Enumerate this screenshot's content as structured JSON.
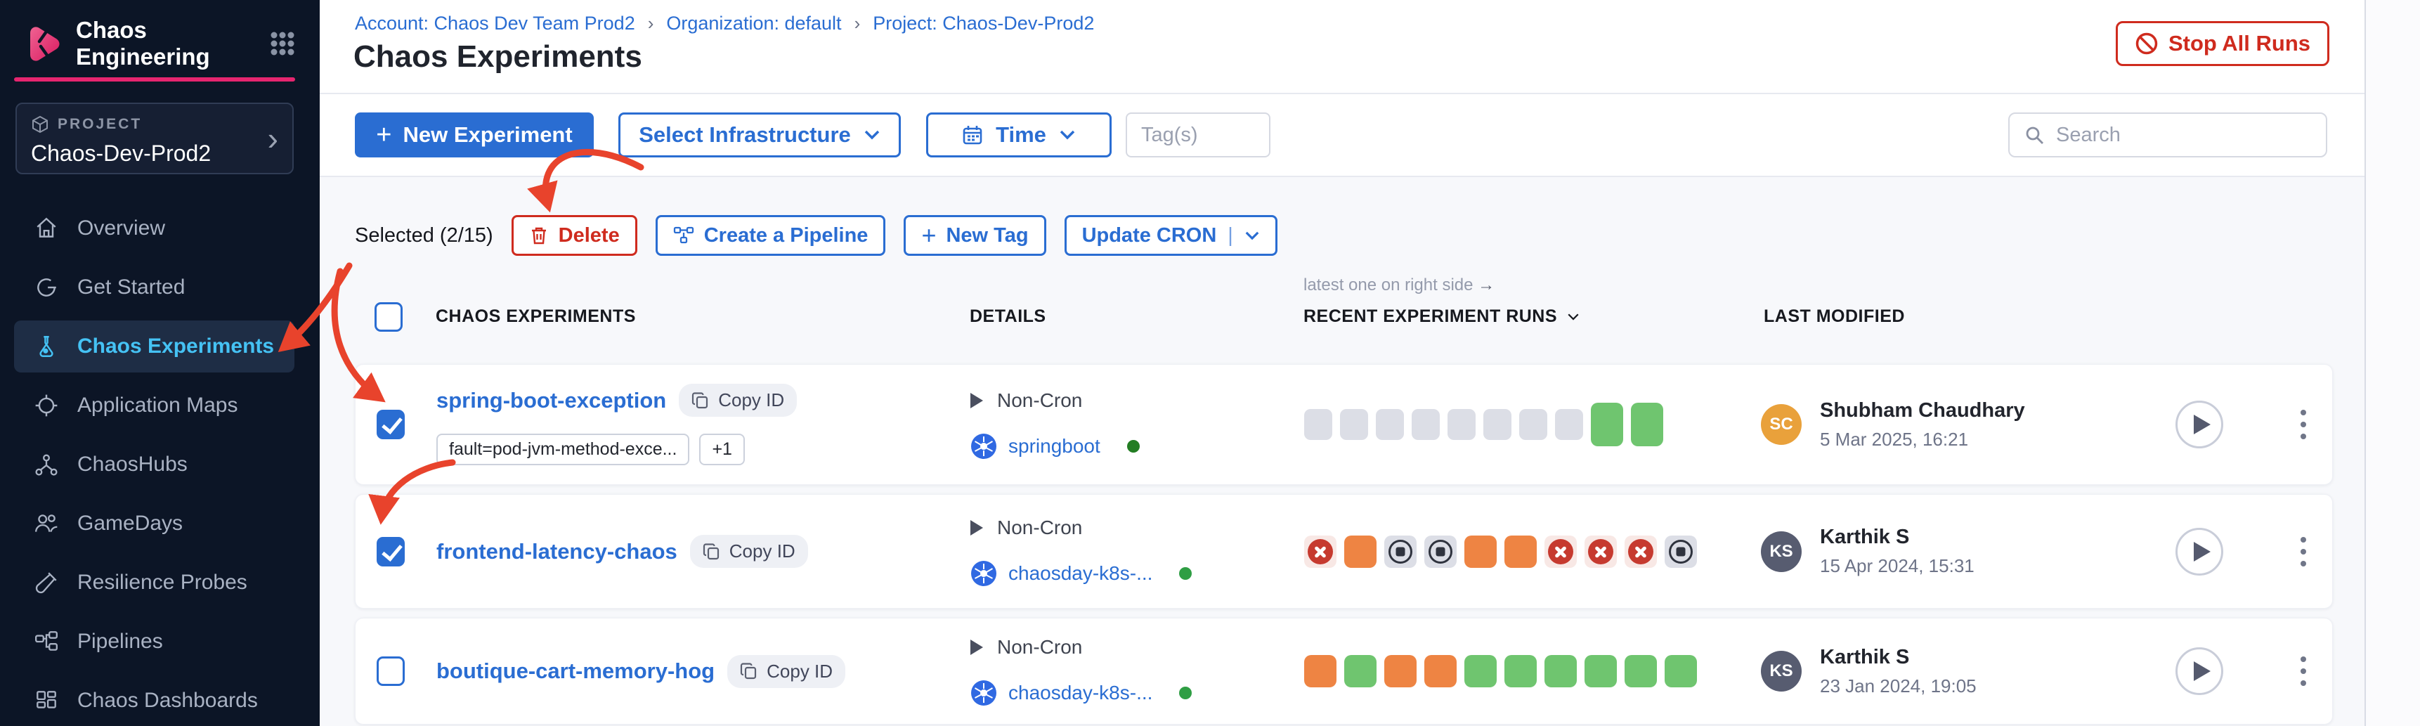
{
  "sidebar": {
    "app_title": "Chaos Engineering",
    "project_label": "PROJECT",
    "project_name": "Chaos-Dev-Prod2",
    "items": [
      {
        "label": "Overview"
      },
      {
        "label": "Get Started"
      },
      {
        "label": "Chaos Experiments",
        "active": true
      },
      {
        "label": "Application Maps"
      },
      {
        "label": "ChaosHubs"
      },
      {
        "label": "GameDays"
      },
      {
        "label": "Resilience Probes"
      },
      {
        "label": "Pipelines"
      },
      {
        "label": "Chaos Dashboards"
      }
    ]
  },
  "header": {
    "breadcrumb": {
      "account": "Account: Chaos Dev Team Prod2",
      "organization": "Organization: default",
      "project": "Project: Chaos-Dev-Prod2",
      "separator": "›"
    },
    "title": "Chaos Experiments",
    "stop_all_runs_label": "Stop All Runs"
  },
  "toolbar": {
    "new_experiment_label": "New Experiment",
    "select_infrastructure_label": "Select Infrastructure",
    "time_label": "Time",
    "tags_placeholder": "Tag(s)",
    "search_placeholder": "Search"
  },
  "selection_bar": {
    "selected_label": "Selected (2/15)",
    "delete_label": "Delete",
    "create_pipeline_label": "Create a Pipeline",
    "new_tag_label": "New Tag",
    "update_cron_label": "Update CRON"
  },
  "table": {
    "runs_note": "latest one on right side",
    "runs_note_arrow": "→",
    "col_experiments": "CHAOS EXPERIMENTS",
    "col_details": "DETAILS",
    "col_runs": "RECENT EXPERIMENT RUNS",
    "col_modified": "LAST MODIFIED"
  },
  "rows": [
    {
      "name": "spring-boot-exception",
      "copy_id_label": "Copy ID",
      "checked": true,
      "tags": {
        "tag1": "fault=pod-jvm-method-exce...",
        "more": "+1"
      },
      "cron": "Non-Cron",
      "infra": "springboot",
      "env_dot_color": "#237d23",
      "runs": [
        {
          "t": "gray",
          "sz": "sm"
        },
        {
          "t": "gray",
          "sz": "sm"
        },
        {
          "t": "gray",
          "sz": "sm"
        },
        {
          "t": "gray",
          "sz": "sm"
        },
        {
          "t": "gray",
          "sz": "sm"
        },
        {
          "t": "gray",
          "sz": "sm"
        },
        {
          "t": "gray",
          "sz": "sm"
        },
        {
          "t": "gray",
          "sz": "sm"
        },
        {
          "t": "green",
          "sz": "lg"
        },
        {
          "t": "green",
          "sz": "lg"
        }
      ],
      "modified_by": "Shubham Chaudhary",
      "initials": "SC",
      "avatar_color": "#e9a13b",
      "modified_date": "5 Mar 2025, 16:21"
    },
    {
      "name": "frontend-latency-chaos",
      "copy_id_label": "Copy ID",
      "checked": true,
      "cron": "Non-Cron",
      "infra": "chaosday-k8s-...",
      "env_dot_color": "#2f9e44",
      "runs": [
        {
          "t": "failed"
        },
        {
          "t": "orange"
        },
        {
          "t": "stopped"
        },
        {
          "t": "stopped"
        },
        {
          "t": "orange"
        },
        {
          "t": "orange"
        },
        {
          "t": "failed"
        },
        {
          "t": "failed"
        },
        {
          "t": "failed"
        },
        {
          "t": "stopped"
        }
      ],
      "modified_by": "Karthik S",
      "initials": "KS",
      "avatar_color": "#575c70",
      "modified_date": "15 Apr 2024, 15:31"
    },
    {
      "name": "boutique-cart-memory-hog",
      "copy_id_label": "Copy ID",
      "checked": false,
      "cron": "Non-Cron",
      "infra": "chaosday-k8s-...",
      "env_dot_color": "#2f9e44",
      "runs": [
        {
          "t": "orange"
        },
        {
          "t": "green"
        },
        {
          "t": "orange"
        },
        {
          "t": "orange"
        },
        {
          "t": "green"
        },
        {
          "t": "green"
        },
        {
          "t": "green"
        },
        {
          "t": "green"
        },
        {
          "t": "green"
        },
        {
          "t": "green"
        }
      ],
      "modified_by": "Karthik S",
      "initials": "KS",
      "avatar_color": "#575c70",
      "modified_date": "23 Jan 2024, 19:05"
    }
  ],
  "colors": {
    "accent_pink": "#e6256f",
    "primary_blue": "#2a6dd2",
    "danger_red": "#cf2b1e",
    "run_green": "#6fc56f",
    "run_orange": "#ee8443",
    "run_gray": "#dcdee6",
    "sidebar_active": "#45c2f4",
    "annotation_red": "#e8432c"
  }
}
